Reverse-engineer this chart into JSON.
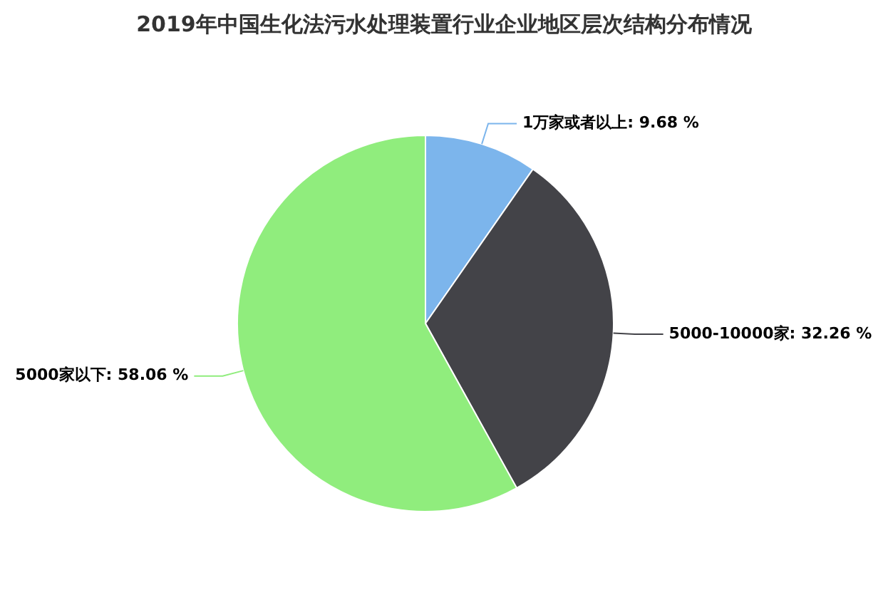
{
  "chart_data": {
    "type": "pie",
    "title": "2019年中国生化法污水处理装置行业企业地区层次结构分布情况",
    "categories": [
      "1万家或者以上",
      "5000-10000家",
      "5000家以下"
    ],
    "values": [
      9.68,
      32.26,
      58.06
    ],
    "value_labels": [
      "9.68 %",
      "32.26 %",
      "58.06 %"
    ],
    "colors": [
      "#7cb5ec",
      "#434348",
      "#90ed7d"
    ],
    "legend": false
  }
}
